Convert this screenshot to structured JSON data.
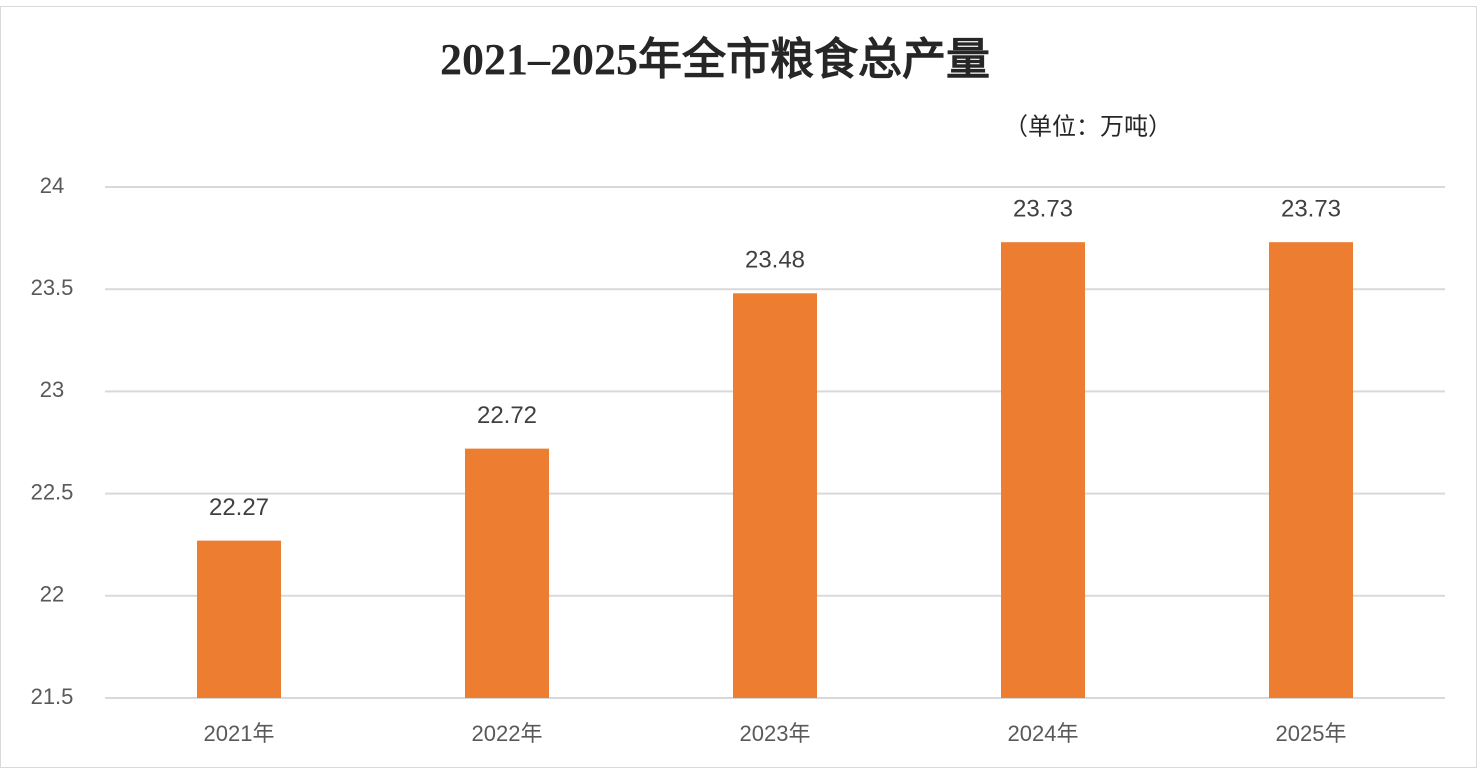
{
  "chart_data": {
    "type": "bar",
    "title": "2021–2025年全市粮食总产量",
    "subtitle": "（单位：万吨）",
    "categories": [
      "2021年",
      "2022年",
      "2023年",
      "2024年",
      "2025年"
    ],
    "values": [
      22.27,
      22.72,
      23.48,
      23.73,
      23.73
    ],
    "color": "#ed7d31",
    "ylim": [
      21.5,
      24
    ],
    "yticks": [
      21.5,
      22,
      22.5,
      23,
      23.5,
      24
    ],
    "grid": true
  }
}
